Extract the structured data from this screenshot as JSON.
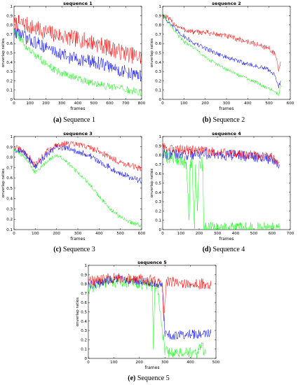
{
  "series_colors": {
    "red": "#ff0000",
    "blue": "#0000ff",
    "green": "#00ff00"
  },
  "captions": [
    {
      "letter": "(a)",
      "text": "Sequence 1"
    },
    {
      "letter": "(b)",
      "text": "Sequence 2"
    },
    {
      "letter": "(c)",
      "text": "Sequence 3"
    },
    {
      "letter": "(d)",
      "text": "Sequence 4"
    },
    {
      "letter": "(e)",
      "text": "Sequence 5"
    }
  ],
  "chart_data": [
    {
      "type": "line",
      "title": "sequence 1",
      "xlabel": "frames",
      "ylabel": "onverlap ratios",
      "xlim": [
        0,
        800
      ],
      "ylim": [
        0,
        1
      ],
      "xticks": [
        0,
        100,
        200,
        300,
        400,
        500,
        600,
        700,
        800
      ],
      "yticks": [
        0,
        0.1,
        0.2,
        0.3,
        0.4,
        0.5,
        0.6,
        0.7,
        0.8,
        0.9,
        1
      ],
      "series": [
        {
          "color": "red",
          "noise": 0.09,
          "x": [
            0,
            30,
            80,
            150,
            250,
            350,
            450,
            550,
            650,
            750,
            800
          ],
          "y": [
            0.8,
            0.82,
            0.8,
            0.75,
            0.7,
            0.66,
            0.63,
            0.58,
            0.52,
            0.47,
            0.45
          ]
        },
        {
          "color": "blue",
          "noise": 0.07,
          "x": [
            0,
            30,
            80,
            150,
            250,
            350,
            450,
            550,
            650,
            750,
            800
          ],
          "y": [
            0.72,
            0.72,
            0.65,
            0.6,
            0.52,
            0.45,
            0.42,
            0.38,
            0.32,
            0.27,
            0.25
          ]
        },
        {
          "color": "green",
          "noise": 0.04,
          "x": [
            0,
            30,
            80,
            150,
            250,
            350,
            450,
            550,
            650,
            750,
            800
          ],
          "y": [
            0.75,
            0.68,
            0.55,
            0.45,
            0.32,
            0.25,
            0.2,
            0.15,
            0.12,
            0.09,
            0.07
          ]
        }
      ]
    },
    {
      "type": "line",
      "title": "sequence 2",
      "xlabel": "frames",
      "ylabel": "onverlap ratios",
      "xlim": [
        0,
        600
      ],
      "ylim": [
        0,
        1
      ],
      "xticks": [
        0,
        100,
        200,
        300,
        400,
        500,
        600
      ],
      "yticks": [
        0,
        0.1,
        0.2,
        0.3,
        0.4,
        0.5,
        0.6,
        0.7,
        0.8,
        0.9,
        1
      ],
      "series": [
        {
          "color": "red",
          "noise": 0.03,
          "x": [
            0,
            20,
            60,
            100,
            150,
            200,
            300,
            400,
            500,
            530,
            545,
            555
          ],
          "y": [
            0.9,
            0.88,
            0.8,
            0.75,
            0.72,
            0.72,
            0.68,
            0.62,
            0.55,
            0.48,
            0.3,
            0.4
          ]
        },
        {
          "color": "blue",
          "noise": 0.025,
          "x": [
            0,
            20,
            60,
            100,
            150,
            200,
            300,
            400,
            500,
            530,
            545,
            555
          ],
          "y": [
            0.92,
            0.85,
            0.75,
            0.68,
            0.6,
            0.55,
            0.45,
            0.38,
            0.32,
            0.25,
            0.12,
            0.2
          ]
        },
        {
          "color": "green",
          "noise": 0.02,
          "x": [
            0,
            20,
            60,
            100,
            150,
            200,
            300,
            400,
            500,
            530,
            545,
            555
          ],
          "y": [
            0.93,
            0.85,
            0.72,
            0.62,
            0.55,
            0.45,
            0.32,
            0.22,
            0.12,
            0.08,
            0.05,
            0.15
          ]
        }
      ]
    },
    {
      "type": "line",
      "title": "sequence 3",
      "xlabel": "frames",
      "ylabel": "onverlap ratios",
      "xlim": [
        0,
        600
      ],
      "ylim": [
        0.1,
        1
      ],
      "xticks": [
        0,
        100,
        200,
        300,
        400,
        500,
        600
      ],
      "yticks": [
        0.1,
        0.2,
        0.3,
        0.4,
        0.5,
        0.6,
        0.7,
        0.8,
        0.9,
        1
      ],
      "series": [
        {
          "color": "red",
          "noise": 0.03,
          "x": [
            0,
            50,
            100,
            150,
            200,
            250,
            300,
            350,
            400,
            450,
            500,
            550,
            600
          ],
          "y": [
            0.9,
            0.85,
            0.72,
            0.85,
            0.92,
            0.93,
            0.92,
            0.9,
            0.86,
            0.8,
            0.75,
            0.72,
            0.68
          ]
        },
        {
          "color": "blue",
          "noise": 0.03,
          "x": [
            0,
            50,
            100,
            150,
            200,
            250,
            300,
            350,
            400,
            450,
            500,
            550,
            600
          ],
          "y": [
            0.88,
            0.84,
            0.7,
            0.82,
            0.9,
            0.88,
            0.86,
            0.82,
            0.76,
            0.7,
            0.65,
            0.6,
            0.57
          ]
        },
        {
          "color": "green",
          "noise": 0.02,
          "x": [
            0,
            50,
            100,
            150,
            200,
            250,
            300,
            350,
            400,
            450,
            500,
            550,
            600
          ],
          "y": [
            0.88,
            0.8,
            0.65,
            0.75,
            0.82,
            0.75,
            0.65,
            0.55,
            0.42,
            0.3,
            0.22,
            0.17,
            0.14
          ]
        }
      ]
    },
    {
      "type": "line",
      "title": "sequence 4",
      "xlabel": "frames",
      "ylabel": "onverlap ratios",
      "xlim": [
        0,
        700
      ],
      "ylim": [
        0,
        1
      ],
      "xticks": [
        0,
        100,
        200,
        300,
        400,
        500,
        600,
        700
      ],
      "yticks": [
        0,
        0.1,
        0.2,
        0.3,
        0.4,
        0.5,
        0.6,
        0.7,
        0.8,
        0.9,
        1
      ],
      "series": [
        {
          "color": "green",
          "noise": 0.08,
          "x": [
            0,
            50,
            100,
            130,
            145,
            150,
            160,
            175,
            180,
            190,
            200,
            220,
            225,
            240,
            300,
            400,
            500,
            600,
            640
          ],
          "y": [
            0.8,
            0.78,
            0.75,
            0.72,
            0.1,
            0.7,
            0.75,
            0.02,
            0.7,
            0.2,
            0.72,
            0.7,
            0.0,
            0.0,
            0.0,
            0.0,
            0.0,
            0.0,
            0.0
          ]
        },
        {
          "color": "blue",
          "noise": 0.06,
          "x": [
            0,
            100,
            200,
            300,
            400,
            500,
            600,
            640
          ],
          "y": [
            0.82,
            0.8,
            0.82,
            0.8,
            0.8,
            0.78,
            0.76,
            0.7
          ]
        },
        {
          "color": "red",
          "noise": 0.05,
          "x": [
            0,
            100,
            200,
            300,
            400,
            500,
            600,
            640
          ],
          "y": [
            0.88,
            0.86,
            0.85,
            0.83,
            0.82,
            0.8,
            0.78,
            0.72
          ]
        }
      ]
    },
    {
      "type": "line",
      "title": "sequence 5",
      "xlabel": "frames",
      "ylabel": "onverlap ratios",
      "xlim": [
        0,
        500
      ],
      "ylim": [
        0,
        1
      ],
      "xticks": [
        0,
        100,
        200,
        300,
        400,
        500
      ],
      "yticks": [
        0,
        0.1,
        0.2,
        0.3,
        0.4,
        0.5,
        0.6,
        0.7,
        0.8,
        0.9,
        1
      ],
      "series": [
        {
          "color": "green",
          "noise": 0.06,
          "x": [
            0,
            50,
            100,
            150,
            200,
            250,
            255,
            260,
            270,
            290,
            300,
            330,
            380,
            430,
            440,
            460
          ],
          "y": [
            0.75,
            0.8,
            0.82,
            0.82,
            0.8,
            0.78,
            0.1,
            0.75,
            0.8,
            0.3,
            0.08,
            0.06,
            0.06,
            0.05,
            0.15,
            0.05
          ]
        },
        {
          "color": "blue",
          "noise": 0.05,
          "x": [
            0,
            50,
            100,
            150,
            200,
            250,
            290,
            300,
            350,
            400,
            450,
            480
          ],
          "y": [
            0.78,
            0.82,
            0.85,
            0.85,
            0.83,
            0.82,
            0.78,
            0.25,
            0.25,
            0.26,
            0.26,
            0.27
          ]
        },
        {
          "color": "red",
          "noise": 0.06,
          "x": [
            0,
            50,
            100,
            150,
            200,
            250,
            290,
            295,
            305,
            350,
            400,
            450,
            480
          ],
          "y": [
            0.82,
            0.85,
            0.86,
            0.86,
            0.85,
            0.84,
            0.8,
            0.4,
            0.82,
            0.82,
            0.8,
            0.8,
            0.78
          ]
        }
      ]
    }
  ]
}
